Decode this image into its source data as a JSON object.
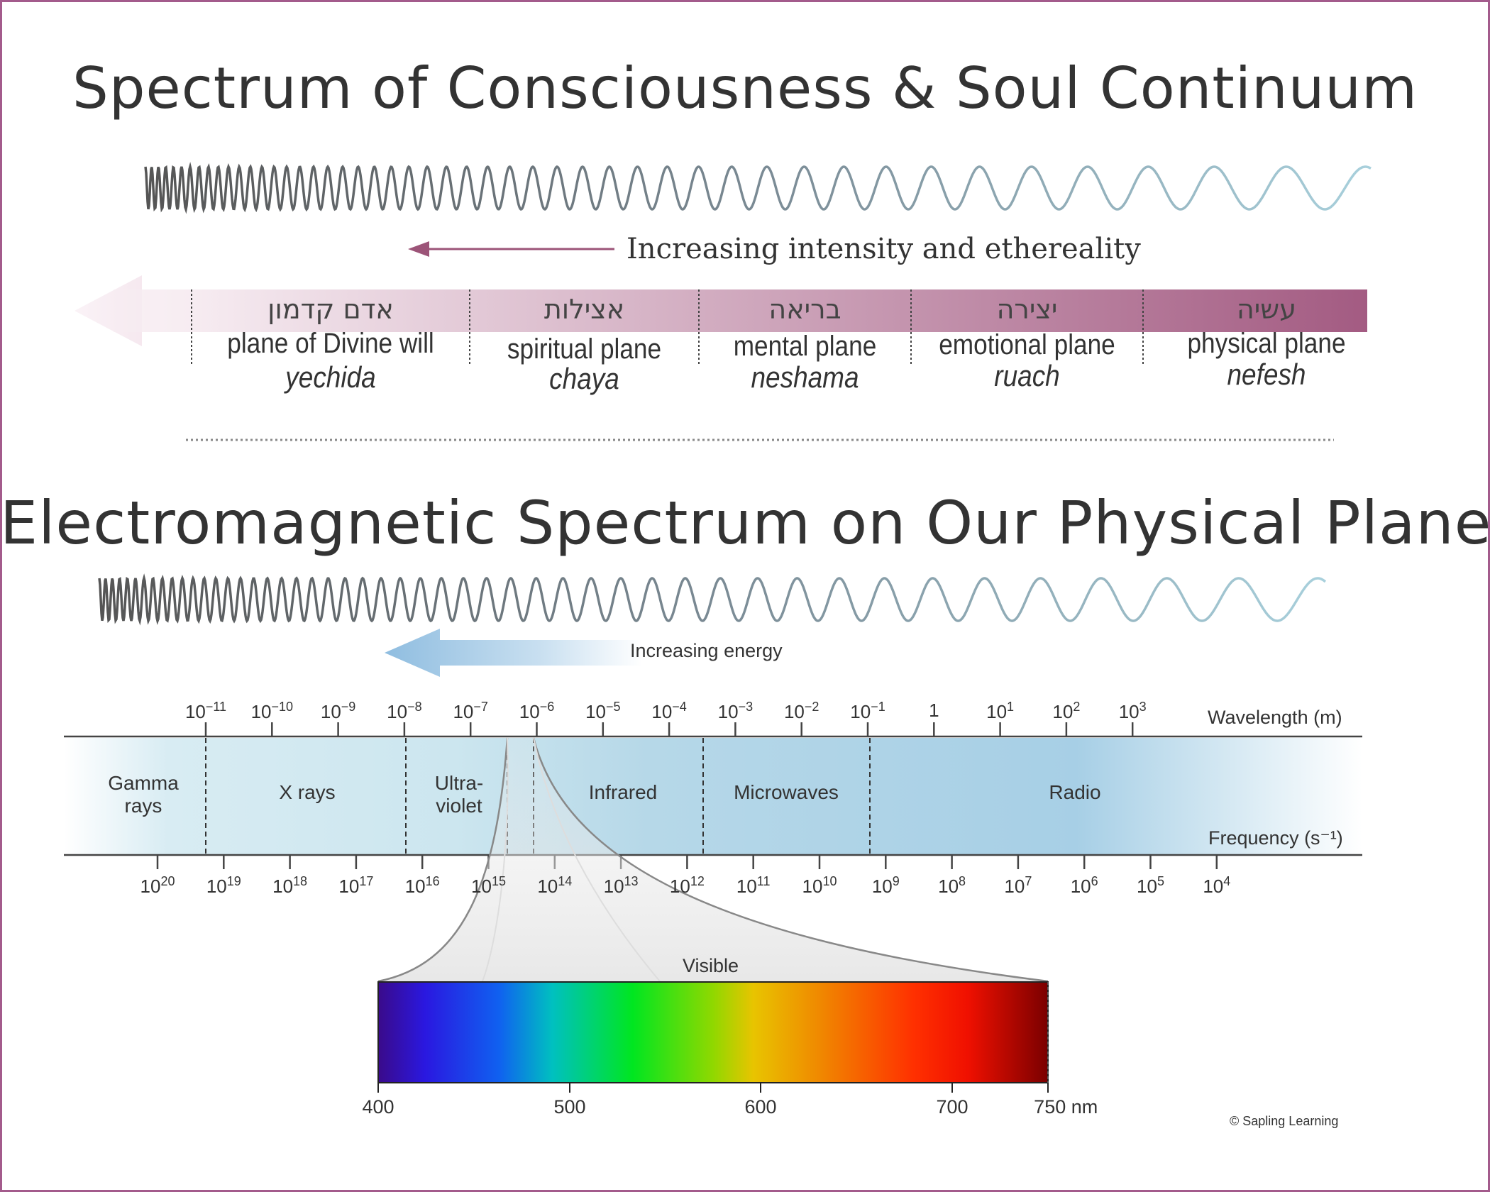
{
  "titles": {
    "top": "Spectrum of Consciousness & Soul Continuum",
    "bottom": "Electromagnetic Spectrum on Our Physical Plane"
  },
  "soul_spectrum": {
    "arrow_label": "Increasing intensity and ethereality",
    "gradient_colors": [
      "#f7eef3",
      "#a35b82"
    ],
    "arrow_color": "#9c5478",
    "planes": [
      {
        "hebrew": "אדם קדמון",
        "plane": "plane of Divine will",
        "soul": "yechida"
      },
      {
        "hebrew": "אצילות",
        "plane": "spiritual plane",
        "soul": "chaya"
      },
      {
        "hebrew": "בריאה",
        "plane": "mental plane",
        "soul": "neshama"
      },
      {
        "hebrew": "יצירה",
        "plane": "emotional plane",
        "soul": "ruach"
      },
      {
        "hebrew": "עשיה",
        "plane": "physical plane",
        "soul": "nefesh"
      }
    ]
  },
  "em_spectrum": {
    "energy_label": "Increasing energy",
    "wavelength_axis_label": "Wavelength (m)",
    "frequency_axis_label": "Frequency (s⁻¹)",
    "band_color": "#aed2e6",
    "regions": [
      {
        "name": "Gamma\nrays"
      },
      {
        "name": "X rays"
      },
      {
        "name": "Ultra-\nviolet"
      },
      {
        "name": "Infrared"
      },
      {
        "name": "Microwaves"
      },
      {
        "name": "Radio"
      }
    ],
    "wavelength_ticks": [
      {
        "base": "10",
        "exp": "−11"
      },
      {
        "base": "10",
        "exp": "−10"
      },
      {
        "base": "10",
        "exp": "−9"
      },
      {
        "base": "10",
        "exp": "−8"
      },
      {
        "base": "10",
        "exp": "−7"
      },
      {
        "base": "10",
        "exp": "−6"
      },
      {
        "base": "10",
        "exp": "−5"
      },
      {
        "base": "10",
        "exp": "−4"
      },
      {
        "base": "10",
        "exp": "−3"
      },
      {
        "base": "10",
        "exp": "−2"
      },
      {
        "base": "10",
        "exp": "−1"
      },
      {
        "base": "1",
        "exp": ""
      },
      {
        "base": "10",
        "exp": "1"
      },
      {
        "base": "10",
        "exp": "2"
      },
      {
        "base": "10",
        "exp": "3"
      }
    ],
    "frequency_ticks": [
      {
        "base": "10",
        "exp": "20"
      },
      {
        "base": "10",
        "exp": "19"
      },
      {
        "base": "10",
        "exp": "18"
      },
      {
        "base": "10",
        "exp": "17"
      },
      {
        "base": "10",
        "exp": "16"
      },
      {
        "base": "10",
        "exp": "15"
      },
      {
        "base": "10",
        "exp": "14"
      },
      {
        "base": "10",
        "exp": "13"
      },
      {
        "base": "10",
        "exp": "12"
      },
      {
        "base": "10",
        "exp": "11"
      },
      {
        "base": "10",
        "exp": "10"
      },
      {
        "base": "10",
        "exp": "9"
      },
      {
        "base": "10",
        "exp": "8"
      },
      {
        "base": "10",
        "exp": "7"
      },
      {
        "base": "10",
        "exp": "6"
      },
      {
        "base": "10",
        "exp": "5"
      },
      {
        "base": "10",
        "exp": "4"
      }
    ],
    "visible": {
      "label": "Visible",
      "nm_ticks": [
        "400",
        "500",
        "600",
        "700",
        "750 nm"
      ],
      "colors": [
        "#3a0a8a",
        "#1a2cf0",
        "#00c0c0",
        "#00e020",
        "#e8c000",
        "#f07000",
        "#ff1a00",
        "#8a0000"
      ]
    },
    "copyright": "© Sapling Learning"
  }
}
